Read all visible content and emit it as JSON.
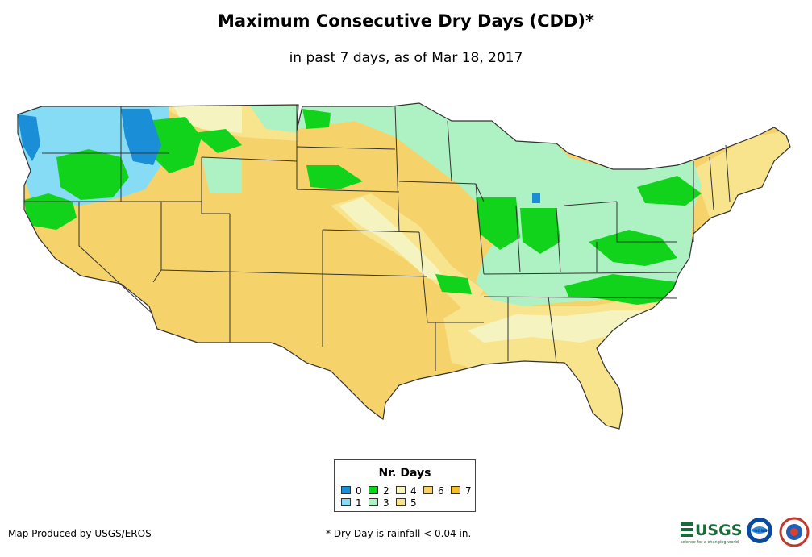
{
  "header": {
    "title": "Maximum Consecutive Dry Days (CDD)*",
    "subtitle": "in past 7 days, as of Mar 18, 2017"
  },
  "legend": {
    "title": "Nr. Days",
    "items": [
      {
        "label": "0",
        "color": "#1a8fd8"
      },
      {
        "label": "1",
        "color": "#86dcf4"
      },
      {
        "label": "2",
        "color": "#12d31c"
      },
      {
        "label": "3",
        "color": "#aef2c4"
      },
      {
        "label": "4",
        "color": "#f5f4c0"
      },
      {
        "label": "5",
        "color": "#f7e48c"
      },
      {
        "label": "6",
        "color": "#f5d26a"
      },
      {
        "label": "7",
        "color": "#f2c02a"
      }
    ]
  },
  "footer": {
    "credit": "Map Produced by USGS/EROS",
    "note": "* Dry Day is rainfall < 0.04 in."
  },
  "logos": {
    "usgs_text": "USGS",
    "usgs_tagline": "science for a changing world",
    "noaa_text": "noaa"
  },
  "colors": {
    "boundary": "#333333",
    "background": "#ffffff"
  }
}
